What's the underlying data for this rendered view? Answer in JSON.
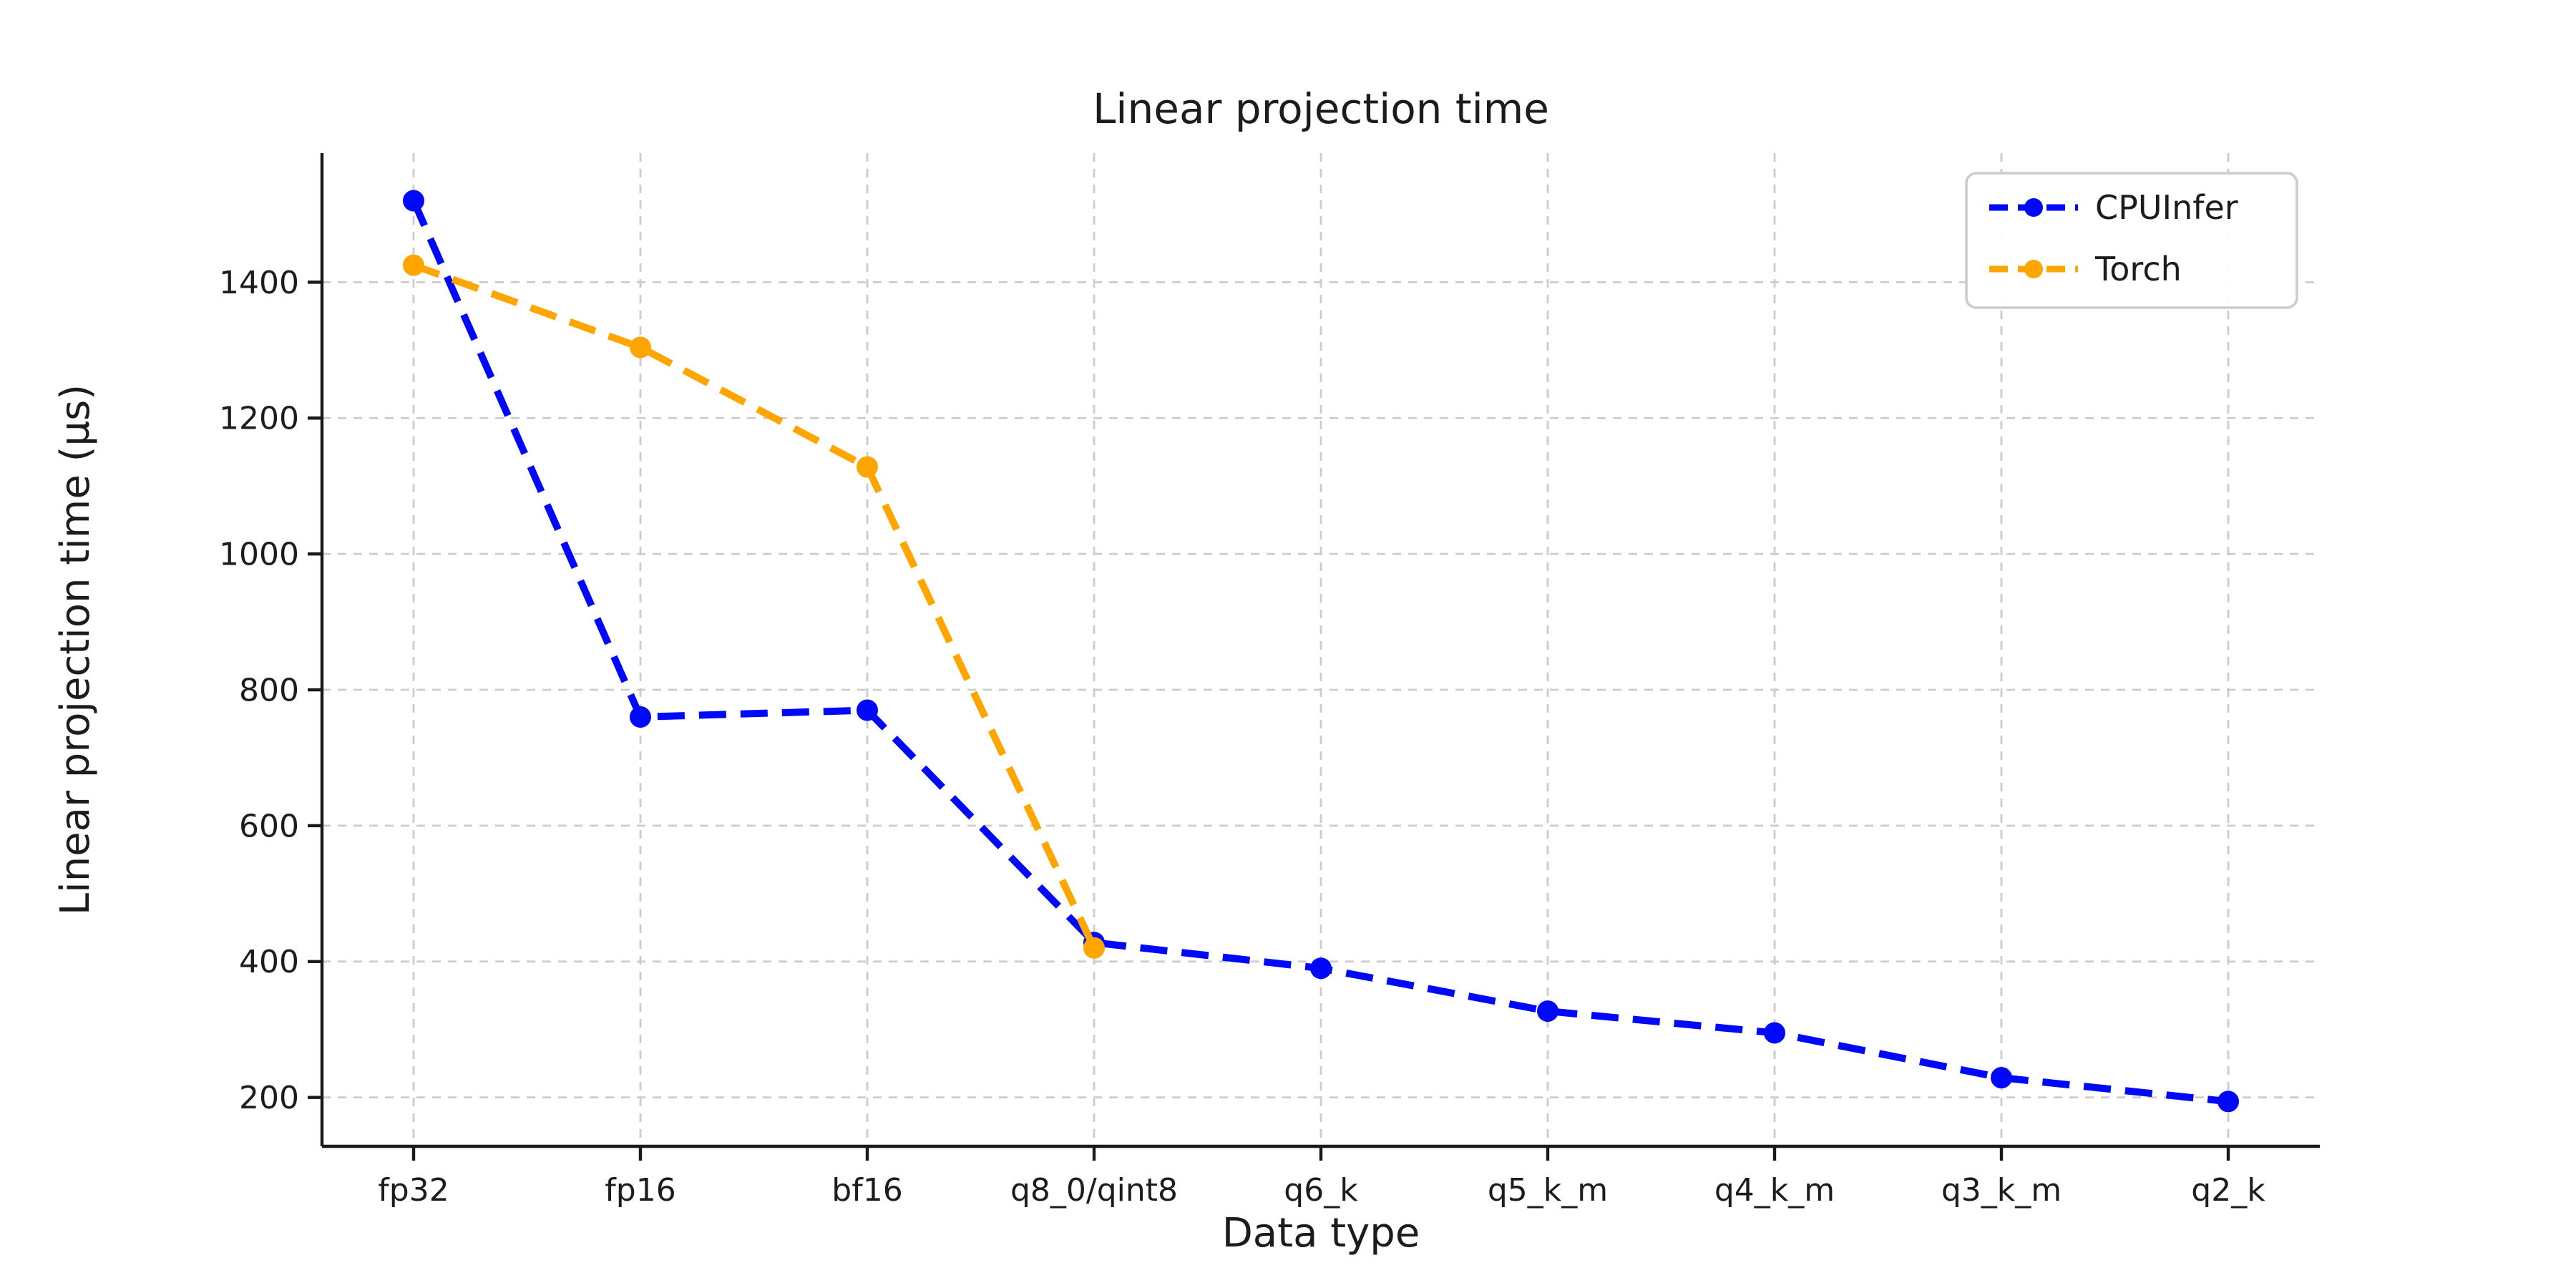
{
  "page": {
    "background": "#ffffff"
  },
  "chart_data": {
    "type": "line",
    "title": "Linear projection time",
    "xlabel": "Data type",
    "ylabel": "Linear projection time (µs)",
    "categories": [
      "fp32",
      "fp16",
      "bf16",
      "q8_0/qint8",
      "q6_k",
      "q5_k_m",
      "q4_k_m",
      "q3_k_m",
      "q2_k"
    ],
    "series": [
      {
        "name": "CPUInfer",
        "color": "#0008fa",
        "line_style": "dashed",
        "marker": "circle",
        "values": [
          1520,
          760,
          770,
          428,
          390,
          327,
          295,
          229,
          194
        ]
      },
      {
        "name": "Torch",
        "color": "#ffa500",
        "line_style": "dashed",
        "marker": "circle",
        "values": [
          1425,
          1304,
          1128,
          420,
          null,
          null,
          null,
          null,
          null
        ]
      }
    ],
    "yticks": [
      200,
      400,
      600,
      800,
      1000,
      1200,
      1400
    ],
    "ylim": [
      128,
      1590
    ],
    "grid": true,
    "grid_style": "dashed",
    "grid_color": "#cccccc",
    "axis_color": "#1a1a1a",
    "text_color": "#1c1c1c",
    "legend_position": "upper right",
    "legend_border_color": "#cccccc",
    "legend_background": "#ffffff"
  }
}
